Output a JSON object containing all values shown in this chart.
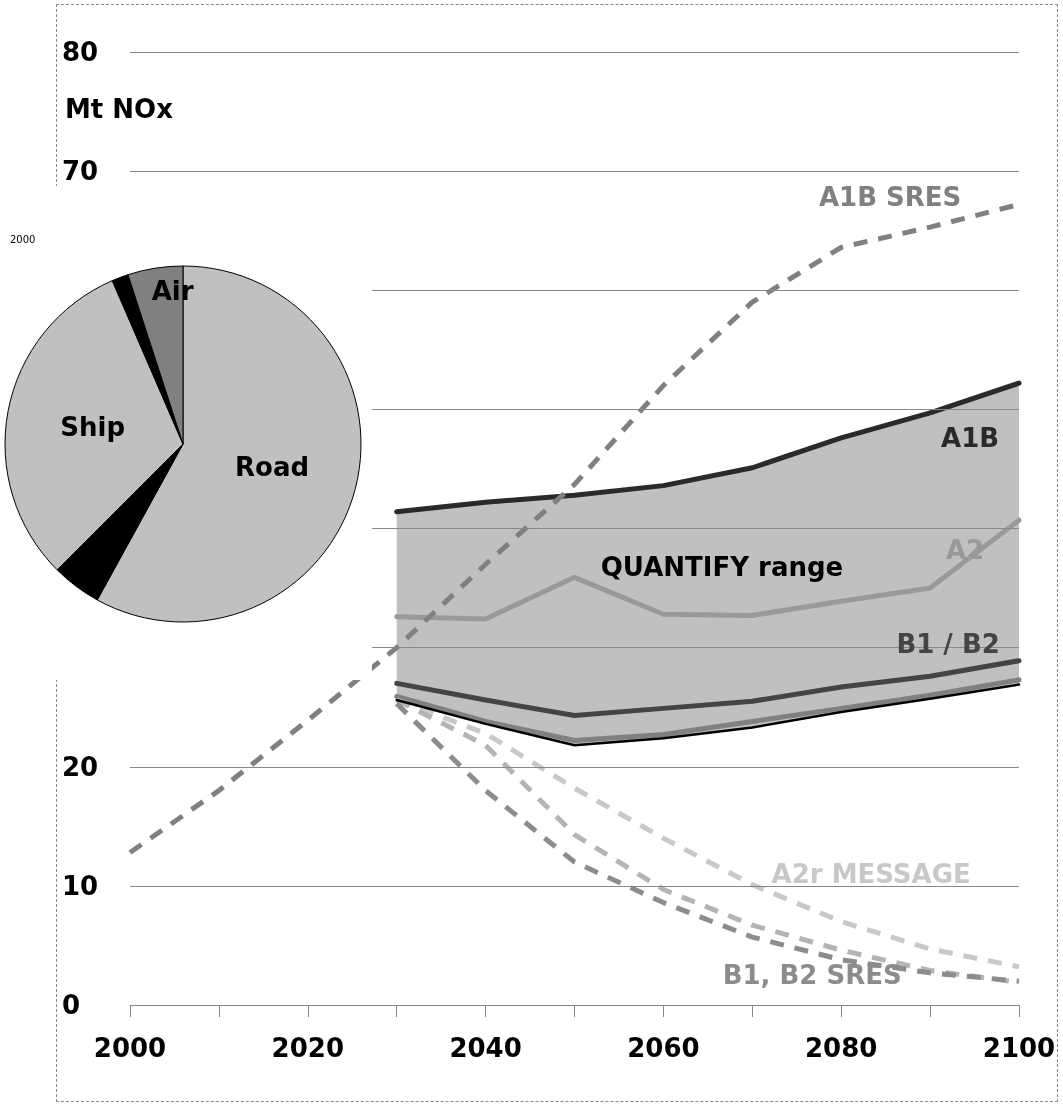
{
  "chart_data": [
    {
      "type": "line",
      "ylabel": "Mt NOx",
      "xlim": [
        2000,
        2100
      ],
      "ylim": [
        0,
        80
      ],
      "xticks": [
        2000,
        {
          "value": 2010,
          "label": null
        },
        2020,
        {
          "value": 2030,
          "label": null
        },
        2040,
        {
          "value": 2050,
          "label": null
        },
        2060,
        {
          "value": 2070,
          "label": null
        },
        2080,
        {
          "value": 2090,
          "label": null
        },
        2100
      ],
      "yticks": [
        0,
        10,
        20,
        {
          "value": 30,
          "label": null
        },
        {
          "value": 40,
          "label": null
        },
        {
          "value": 50,
          "label": null
        },
        {
          "value": 60,
          "label": null
        },
        70,
        80
      ],
      "grid": "y",
      "legend": false,
      "annotations": [
        "QUANTIFY range"
      ],
      "series": [
        {
          "name": "A1B",
          "color": "#2a2a2a",
          "line_style": "solid",
          "x": [
            2030,
            2040,
            2050,
            2060,
            2070,
            2080,
            2090,
            2100
          ],
          "values": [
            41.4,
            42.2,
            42.8,
            43.6,
            45.1,
            47.6,
            49.7,
            52.2
          ],
          "upper": [
            41.4,
            42.2,
            42.8,
            43.6,
            45.1,
            47.6,
            49.7,
            52.2
          ],
          "lower": [
            25.6,
            23.6,
            21.8,
            22.4,
            23.3,
            24.6,
            25.7,
            26.9
          ]
        },
        {
          "name": "A2",
          "color": "#999999",
          "line_style": "solid",
          "x": [
            2030,
            2040,
            2050,
            2060,
            2070,
            2080,
            2090,
            2100
          ],
          "values": [
            32.6,
            32.4,
            35.9,
            32.8,
            32.7,
            33.9,
            35.0,
            40.7
          ]
        },
        {
          "name": "B1 / B2",
          "color": "#444444",
          "line_style": "solid",
          "x": [
            2030,
            2040,
            2050,
            2060,
            2070,
            2080,
            2090,
            2100
          ],
          "values": [
            27.0,
            25.6,
            24.3,
            24.9,
            25.5,
            26.7,
            27.6,
            28.9
          ]
        },
        {
          "color": "#808080",
          "line_style": "solid",
          "x": [
            2030,
            2040,
            2050,
            2060,
            2070,
            2080,
            2090,
            2100
          ],
          "values": [
            25.9,
            23.8,
            22.2,
            22.7,
            23.8,
            24.9,
            26.0,
            27.3
          ]
        },
        {
          "name": "A1B SRES",
          "color": "#808080",
          "line_style": "dashed",
          "x": [
            2000,
            2010,
            2020,
            2030,
            2040,
            2050,
            2060,
            2070,
            2080,
            2090,
            2100
          ],
          "values": [
            12.8,
            18.0,
            23.9,
            30.0,
            37.0,
            43.7,
            52.0,
            59.0,
            63.6,
            65.3,
            67.2
          ]
        },
        {
          "name": "A2r MESSAGE",
          "color": "#c8c8c8",
          "line_style": "dashed",
          "x": [
            2030,
            2040,
            2050,
            2060,
            2070,
            2080,
            2090,
            2100
          ],
          "values": [
            25.6,
            22.8,
            18.2,
            14.0,
            10.1,
            7.0,
            4.7,
            3.2
          ]
        },
        {
          "color": "#b4b4b4",
          "line_style": "dashed",
          "x": [
            2030,
            2040,
            2050,
            2060,
            2070,
            2080,
            2090,
            2100
          ],
          "values": [
            25.6,
            21.8,
            14.3,
            9.7,
            6.7,
            4.6,
            2.9,
            1.9
          ]
        },
        {
          "name": "B1, B2 SRES",
          "color": "#8c8c8c",
          "line_style": "dashed",
          "x": [
            2030,
            2040,
            2050,
            2060,
            2070,
            2080,
            2090,
            2100
          ],
          "values": [
            25.3,
            18.0,
            12.0,
            8.6,
            5.7,
            3.8,
            2.7,
            2.0
          ]
        },
        {
          "color": "#000000",
          "line_style": "solid",
          "x": [
            2030,
            2040,
            2050,
            2060,
            2070,
            2080,
            2090,
            2100
          ],
          "values": [
            25.6,
            23.6,
            21.8,
            22.4,
            23.3,
            24.6,
            25.7,
            26.9
          ]
        }
      ]
    },
    {
      "type": "pie",
      "title": "2000",
      "categories": [
        "Road",
        null,
        "Ship",
        null,
        "Air"
      ],
      "values": [
        58,
        4.5,
        31,
        1.5,
        5
      ],
      "colors": [
        "#c0c0c0",
        "#000000",
        "#c0c0c0",
        "#000000",
        "#808080"
      ]
    }
  ]
}
